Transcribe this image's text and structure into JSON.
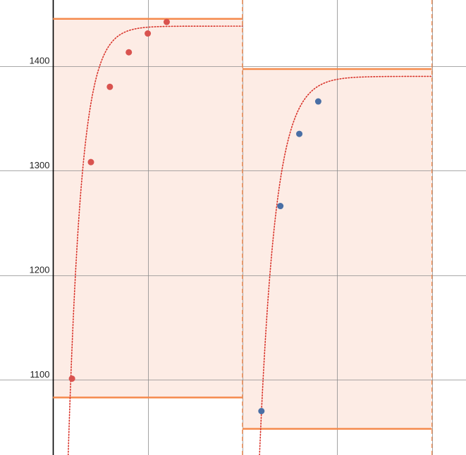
{
  "chart_data": {
    "type": "scatter",
    "title": "",
    "xlabel": "",
    "ylabel": "",
    "x_range": [
      -0.28,
      2.18
    ],
    "ylim": [
      1028,
      1463
    ],
    "y_ticks": [
      1100,
      1200,
      1300,
      1400
    ],
    "x_gridlines": [
      0,
      0.5,
      1,
      1.5,
      2
    ],
    "y_axis_at_x": 0,
    "grid": true,
    "legend": "none",
    "colors": {
      "band_fill": "#fdece5",
      "band_edge": "#f58a4c",
      "series_1": "#d9534f",
      "series_2": "#4a6fa5",
      "fit_curve": "#d9342b",
      "grid": "#8c8c8c",
      "axis": "#000000"
    },
    "bands": [
      {
        "x_start": 0,
        "x_end": 1,
        "y_lower": 1083,
        "y_upper": 1445
      },
      {
        "x_start": 1,
        "x_end": 2,
        "y_lower": 1053,
        "y_upper": 1397
      }
    ],
    "series": [
      {
        "color": "#d9534f",
        "points": [
          {
            "x": 0.1,
            "y": 1101
          },
          {
            "x": 0.2,
            "y": 1308
          },
          {
            "x": 0.3,
            "y": 1380
          },
          {
            "x": 0.4,
            "y": 1413
          },
          {
            "x": 0.5,
            "y": 1431
          },
          {
            "x": 0.6,
            "y": 1442
          }
        ]
      },
      {
        "color": "#4a6fa5",
        "points": [
          {
            "x": 1.1,
            "y": 1070
          },
          {
            "x": 1.2,
            "y": 1266
          },
          {
            "x": 1.3,
            "y": 1335
          },
          {
            "x": 1.4,
            "y": 1366
          }
        ]
      }
    ],
    "fit_curves": [
      {
        "x_start": 0.08,
        "x_end": 1.0,
        "asymptote": 1438,
        "k": 14.3,
        "y_at_x_start": 1028
      },
      {
        "x_start": 1.09,
        "x_end": 2.0,
        "asymptote": 1390,
        "k": 11.8,
        "y_at_x_start": 1028
      }
    ]
  }
}
